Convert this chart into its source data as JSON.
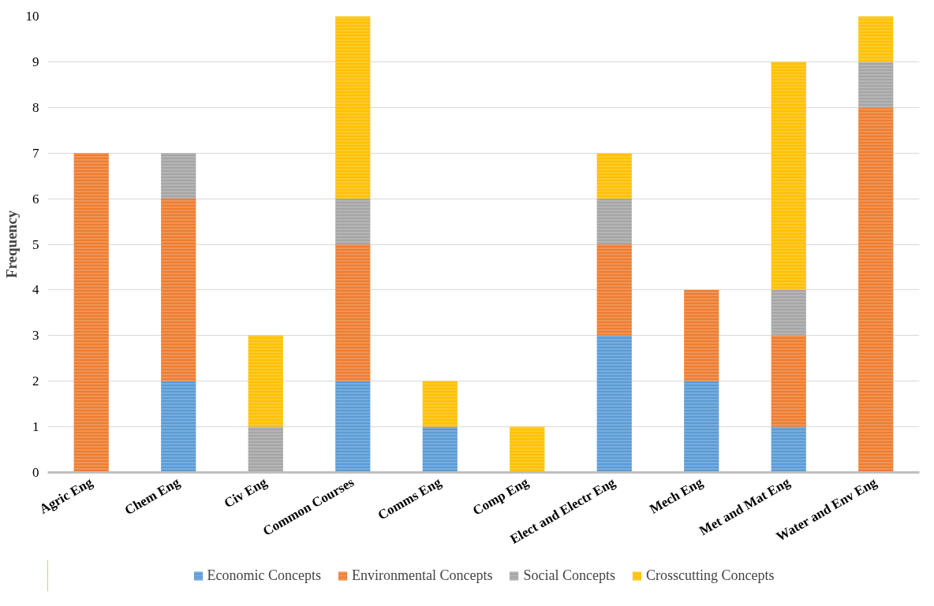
{
  "chart_data": {
    "type": "bar",
    "stacked": true,
    "ylabel": "Frequency",
    "categories": [
      "Agric Eng",
      "Chem Eng",
      "Civ Eng",
      "Common Courses",
      "Comms Eng",
      "Comp Eng",
      "Elect and Electr Eng",
      "Mech Eng",
      "Met and Mat Eng",
      "Water and Env Eng"
    ],
    "series": [
      {
        "name": "Economic Concepts",
        "color": "#5b9bd5",
        "values": [
          0,
          2,
          0,
          2,
          1,
          0,
          3,
          2,
          1,
          0
        ]
      },
      {
        "name": "Environmental Concepts",
        "color": "#ed7d31",
        "values": [
          7,
          4,
          0,
          3,
          0,
          0,
          2,
          2,
          2,
          8
        ]
      },
      {
        "name": "Social Concepts",
        "color": "#a5a5a5",
        "values": [
          0,
          1,
          1,
          1,
          0,
          0,
          1,
          0,
          1,
          1
        ]
      },
      {
        "name": "Crosscutting Concepts",
        "color": "#ffc000",
        "values": [
          0,
          0,
          2,
          4,
          1,
          1,
          1,
          0,
          5,
          1
        ]
      }
    ],
    "ylim": [
      0,
      10
    ],
    "yticks": [
      0,
      1,
      2,
      3,
      4,
      5,
      6,
      7,
      8,
      9,
      10
    ],
    "grid": "y",
    "legend": "bottom"
  }
}
